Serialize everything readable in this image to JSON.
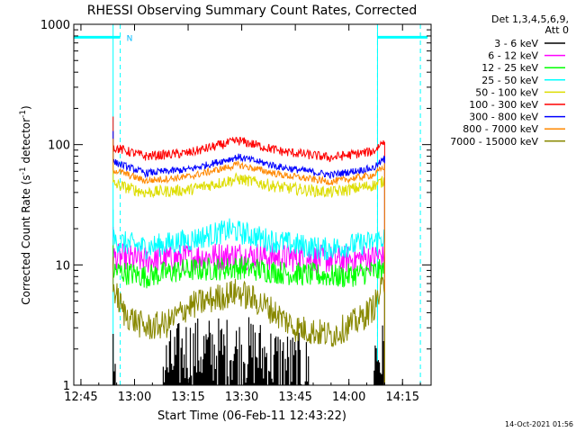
{
  "chart_data": {
    "type": "line",
    "title": "RHESSI Observing Summary Count Rates, Corrected",
    "xlabel": "Start Time (06-Feb-11 12:43:22)",
    "ylabel_main": "Corrected Count Rate (s",
    "ylabel_sup1": "-1",
    "ylabel_mid": " detector",
    "ylabel_sup2": "-1",
    "ylabel_end": ")",
    "y_scale": "log",
    "ylim": [
      1,
      1000
    ],
    "xlim_minutes": [
      0,
      100
    ],
    "x_ticks": [
      {
        "label": "12:45",
        "t": 2
      },
      {
        "label": "13:00",
        "t": 17
      },
      {
        "label": "13:15",
        "t": 32
      },
      {
        "label": "13:30",
        "t": 47
      },
      {
        "label": "13:45",
        "t": 62
      },
      {
        "label": "14:00",
        "t": 77
      },
      {
        "label": "14:15",
        "t": 92
      }
    ],
    "y_ticks": [
      {
        "label": "1",
        "v": 1
      },
      {
        "label": "10",
        "v": 10
      },
      {
        "label": "100",
        "v": 100
      },
      {
        "label": "1000",
        "v": 1000
      }
    ],
    "legend_title_1": "Det 1,3,4,5,6,9,",
    "legend_title_2": "Att 0",
    "legend_placement": "right",
    "data_window": [
      11,
      87
    ],
    "markers": {
      "night_bar_left": [
        0,
        13
      ],
      "night_bar_right": [
        85,
        99
      ],
      "dashed_lines": [
        13,
        85,
        97
      ],
      "solid_lines": [
        11,
        85
      ],
      "saa_label": "N",
      "bar_level": 780
    },
    "series": [
      {
        "name": "3 - 6 keV",
        "color": "#000000",
        "profile": [
          [
            11,
            1.6
          ],
          [
            20,
            1.0
          ],
          [
            31,
            1.9
          ],
          [
            50,
            1.9
          ],
          [
            62,
            1.4
          ],
          [
            70,
            1.2
          ],
          [
            84,
            1.8
          ],
          [
            87,
            1.7
          ]
        ],
        "noise": 0.9
      },
      {
        "name": "6 - 12 keV",
        "color": "#ff00ff",
        "profile": [
          [
            11,
            11.5
          ],
          [
            20,
            11
          ],
          [
            30,
            11.5
          ],
          [
            47,
            12
          ],
          [
            60,
            11.5
          ],
          [
            75,
            11
          ],
          [
            84,
            11.5
          ],
          [
            87,
            12
          ]
        ],
        "noise": 0.12
      },
      {
        "name": "12 - 25 keV",
        "color": "#00ff00",
        "profile": [
          [
            11,
            9
          ],
          [
            20,
            8.0
          ],
          [
            30,
            9.0
          ],
          [
            47,
            9.5
          ],
          [
            60,
            8.5
          ],
          [
            75,
            8
          ],
          [
            84,
            8.8
          ],
          [
            87,
            9
          ]
        ],
        "noise": 0.1
      },
      {
        "name": "25 - 50 keV",
        "color": "#00ffff",
        "profile": [
          [
            11,
            16
          ],
          [
            20,
            14
          ],
          [
            32,
            16
          ],
          [
            44,
            19.5
          ],
          [
            55,
            16
          ],
          [
            70,
            13.5
          ],
          [
            84,
            15.5
          ],
          [
            87,
            17
          ]
        ],
        "noise": 0.1
      },
      {
        "name": "50 - 100 keV",
        "color": "#dddd00",
        "profile": [
          [
            11,
            47
          ],
          [
            20,
            40
          ],
          [
            32,
            42
          ],
          [
            46,
            52
          ],
          [
            58,
            44
          ],
          [
            72,
            40
          ],
          [
            84,
            46
          ],
          [
            87,
            50
          ]
        ],
        "noise": 0.05
      },
      {
        "name": "100 - 300 keV",
        "color": "#ff0000",
        "profile": [
          [
            11,
            95
          ],
          [
            20,
            80
          ],
          [
            32,
            85
          ],
          [
            46,
            108
          ],
          [
            58,
            88
          ],
          [
            72,
            78
          ],
          [
            84,
            88
          ],
          [
            87,
            110
          ]
        ],
        "noise": 0.04
      },
      {
        "name": "300 - 800 keV",
        "color": "#0000ff",
        "profile": [
          [
            11,
            72
          ],
          [
            20,
            58
          ],
          [
            32,
            62
          ],
          [
            46,
            79
          ],
          [
            58,
            65
          ],
          [
            72,
            56
          ],
          [
            84,
            64
          ],
          [
            87,
            76
          ]
        ],
        "noise": 0.03
      },
      {
        "name": "800 - 7000 keV",
        "color": "#ff8800",
        "profile": [
          [
            11,
            62
          ],
          [
            20,
            50
          ],
          [
            32,
            54
          ],
          [
            46,
            68
          ],
          [
            58,
            56
          ],
          [
            72,
            49
          ],
          [
            84,
            56
          ],
          [
            87,
            66
          ]
        ],
        "noise": 0.03
      },
      {
        "name": "7000 - 15000 keV",
        "color": "#888800",
        "profile": [
          [
            11,
            6.5
          ],
          [
            14,
            4.0
          ],
          [
            20,
            3.0
          ],
          [
            26,
            3.2
          ],
          [
            32,
            4.5
          ],
          [
            46,
            6.0
          ],
          [
            54,
            4.5
          ],
          [
            62,
            3.0
          ],
          [
            72,
            2.6
          ],
          [
            80,
            3.5
          ],
          [
            84,
            4.5
          ],
          [
            87,
            7.0
          ]
        ],
        "noise": 0.12
      }
    ],
    "timestamp": "14-Oct-2021 01:56"
  }
}
